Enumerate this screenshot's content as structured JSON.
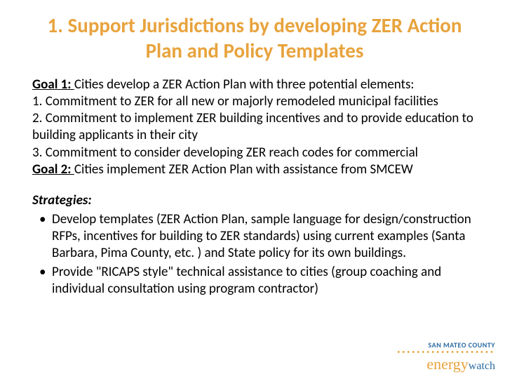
{
  "title_color": "#e8a33d",
  "title": "1. Support Jurisdictions by developing ZER Action Plan and Policy Templates",
  "goal1_label": "Goal 1: ",
  "goal1_text": "Cities develop a ZER Action Plan with three potential elements:",
  "element1": "1. Commitment to ZER for all new or majorly remodeled municipal facilities",
  "element2": "2. Commitment to implement ZER building incentives and to provide education  to building applicants in their city",
  "element3": "3. Commitment to consider developing ZER reach codes for commercial",
  "goal2_label": "Goal 2: ",
  "goal2_text": "Cities implement ZER Action Plan with assistance from SMCEW",
  "strategies_label": "Strategies:",
  "bullets": [
    "Develop templates (ZER Action Plan, sample language for design/construction RFPs, incentives for building to ZER standards) using current examples (Santa Barbara, Pima County, etc. ) and State policy for its own buildings.",
    "Provide \"RICAPS style\" technical assistance to cities (group coaching and individual consultation using program contractor)"
  ],
  "logo": {
    "top": "SAN MATEO COUNTY",
    "energy": "energy",
    "watch": "watch",
    "dots": "••••••••••••••••••••"
  }
}
